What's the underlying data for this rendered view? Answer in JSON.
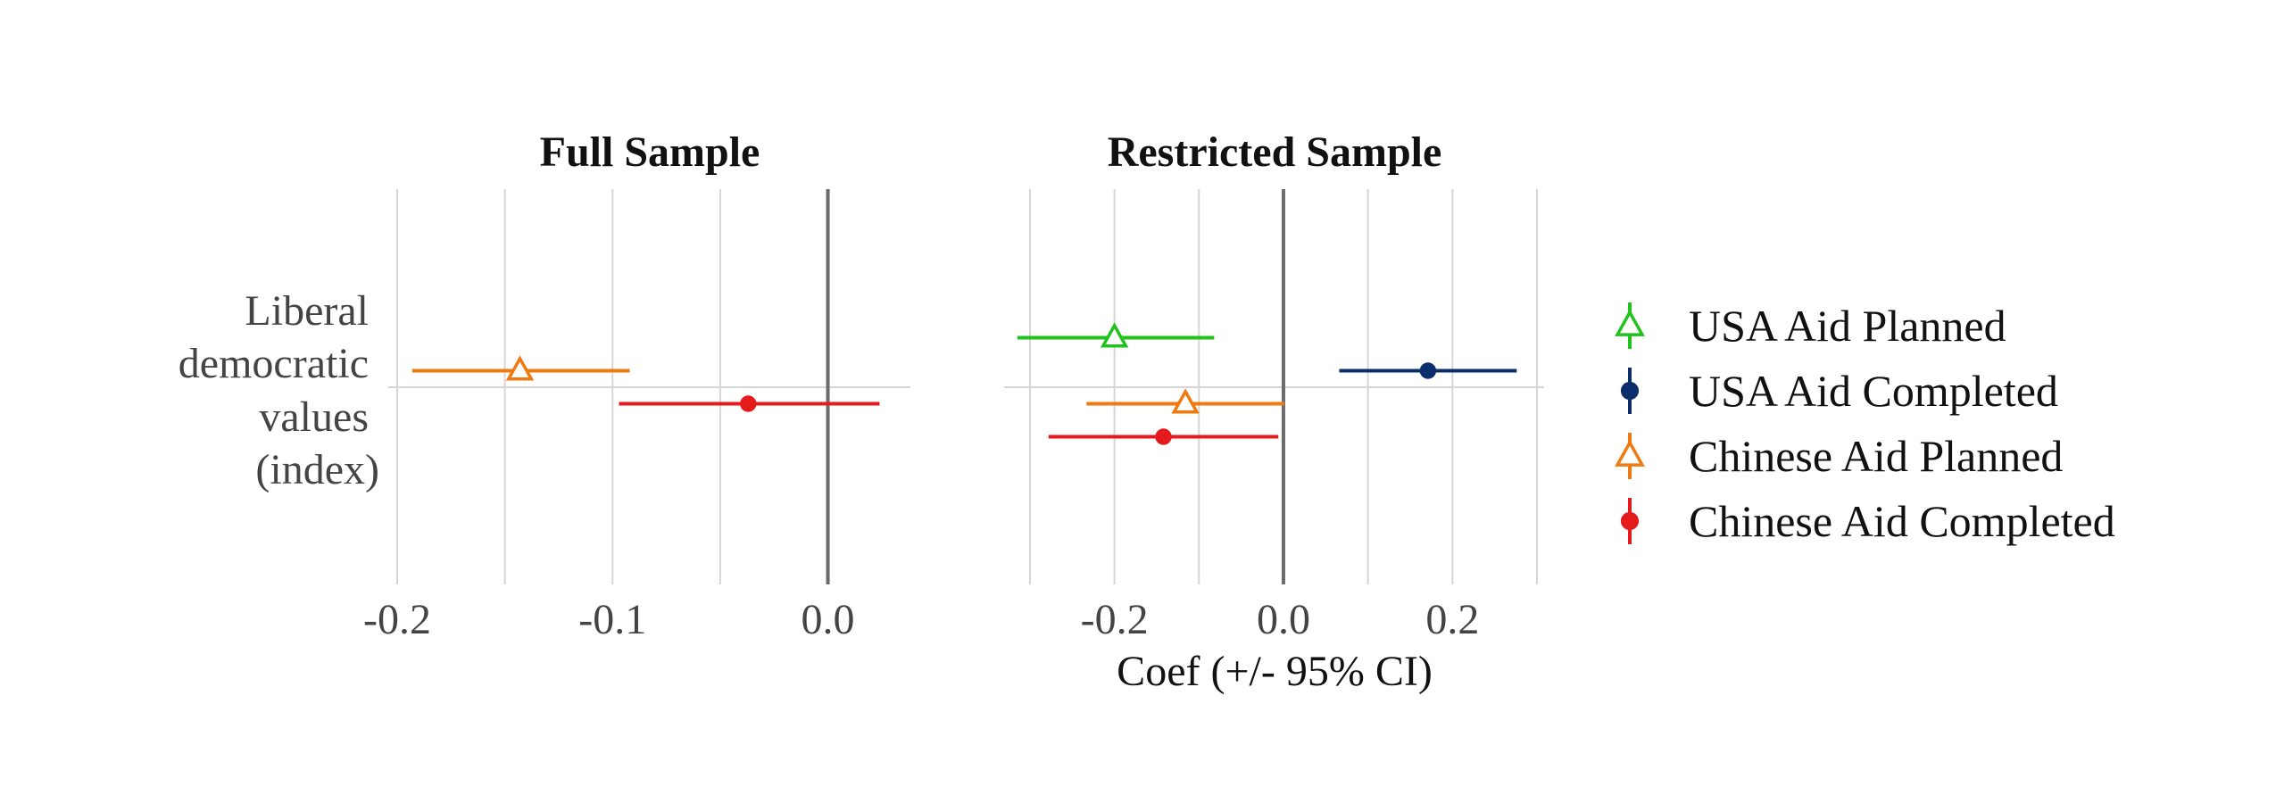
{
  "chart_data": {
    "type": "coefficient-plot",
    "x_axis_title": "Coef (+/- 95% CI)",
    "y_category": [
      "Liberal",
      "democratic",
      "values",
      "(index)"
    ],
    "series": [
      {
        "name": "USA Aid Planned",
        "color": "#22c21c",
        "marker": "open-triangle"
      },
      {
        "name": "USA Aid Completed",
        "color": "#0b2e6b",
        "marker": "filled-circle"
      },
      {
        "name": "Chinese Aid Planned",
        "color": "#f07a12",
        "marker": "open-triangle"
      },
      {
        "name": "Chinese Aid Completed",
        "color": "#e41a1c",
        "marker": "filled-circle"
      }
    ],
    "panels": [
      {
        "title": "Full Sample",
        "xlim": [
          -0.2,
          0.035
        ],
        "ticks": [
          {
            "value": -0.2,
            "label": "-0.2"
          },
          {
            "value": -0.1,
            "label": "-0.1"
          },
          {
            "value": 0.0,
            "label": "0.0"
          }
        ],
        "minor_ticks": [
          -0.15,
          -0.05
        ],
        "estimates": [
          {
            "series": "Chinese Aid Planned",
            "coef": -0.143,
            "lo": -0.193,
            "hi": -0.092
          },
          {
            "series": "Chinese Aid Completed",
            "coef": -0.037,
            "lo": -0.097,
            "hi": 0.024
          }
        ]
      },
      {
        "title": "Restricted Sample",
        "xlim": [
          -0.32,
          0.3
        ],
        "ticks": [
          {
            "value": -0.2,
            "label": "-0.2"
          },
          {
            "value": 0.0,
            "label": "0.0"
          },
          {
            "value": 0.2,
            "label": "0.2"
          }
        ],
        "minor_ticks": [
          -0.3,
          -0.1,
          0.1,
          0.3
        ],
        "estimates": [
          {
            "series": "USA Aid Planned",
            "coef": -0.2,
            "lo": -0.315,
            "hi": -0.082
          },
          {
            "series": "USA Aid Completed",
            "coef": 0.171,
            "lo": 0.066,
            "hi": 0.276
          },
          {
            "series": "Chinese Aid Planned",
            "coef": -0.116,
            "lo": -0.233,
            "hi": 0.001
          },
          {
            "series": "Chinese Aid Completed",
            "coef": -0.142,
            "lo": -0.278,
            "hi": -0.006
          }
        ]
      }
    ]
  }
}
